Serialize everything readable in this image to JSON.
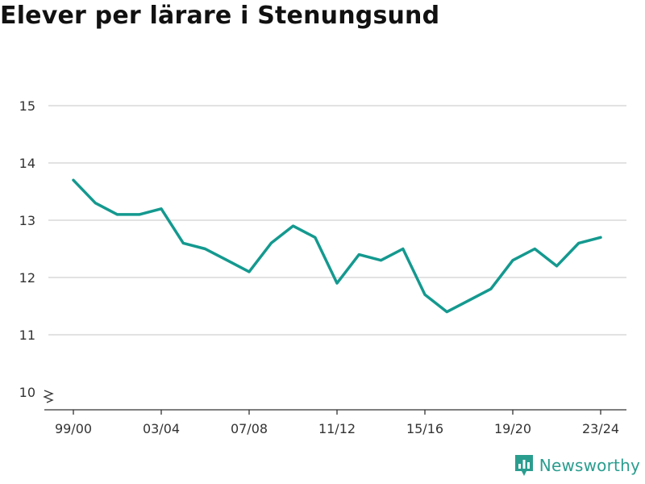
{
  "colors": {
    "line": "#14998f",
    "grid": "#d9d9d9",
    "axis": "#333333",
    "brand": "#2a9d8f"
  },
  "brand": {
    "name": "Newsworthy",
    "icon": "bar-chart-speech-bubble-icon"
  },
  "chart_data": {
    "type": "line",
    "title": "Elever per lärare i Stenungsund",
    "xlabel": "",
    "ylabel": "",
    "x": [
      "99/00",
      "00/01",
      "01/02",
      "02/03",
      "03/04",
      "04/05",
      "05/06",
      "06/07",
      "07/08",
      "08/09",
      "09/10",
      "10/11",
      "11/12",
      "12/13",
      "13/14",
      "14/15",
      "15/16",
      "16/17",
      "17/18",
      "18/19",
      "19/20",
      "20/21",
      "21/22",
      "22/23",
      "23/24"
    ],
    "x_tick_labels": [
      "99/00",
      "03/04",
      "07/08",
      "11/12",
      "15/16",
      "19/20",
      "23/24"
    ],
    "series": [
      {
        "values": [
          13.7,
          13.3,
          13.1,
          13.1,
          13.2,
          12.6,
          12.5,
          12.3,
          12.1,
          12.6,
          12.9,
          12.7,
          11.9,
          12.4,
          12.3,
          12.5,
          11.7,
          11.4,
          11.6,
          11.8,
          12.3,
          12.5,
          12.2,
          12.6,
          12.7
        ]
      }
    ],
    "ylim": [
      10,
      15
    ],
    "y_ticks": [
      10,
      11,
      12,
      13,
      14,
      15
    ],
    "y_axis_break": true,
    "grid": true,
    "legend": "none"
  }
}
